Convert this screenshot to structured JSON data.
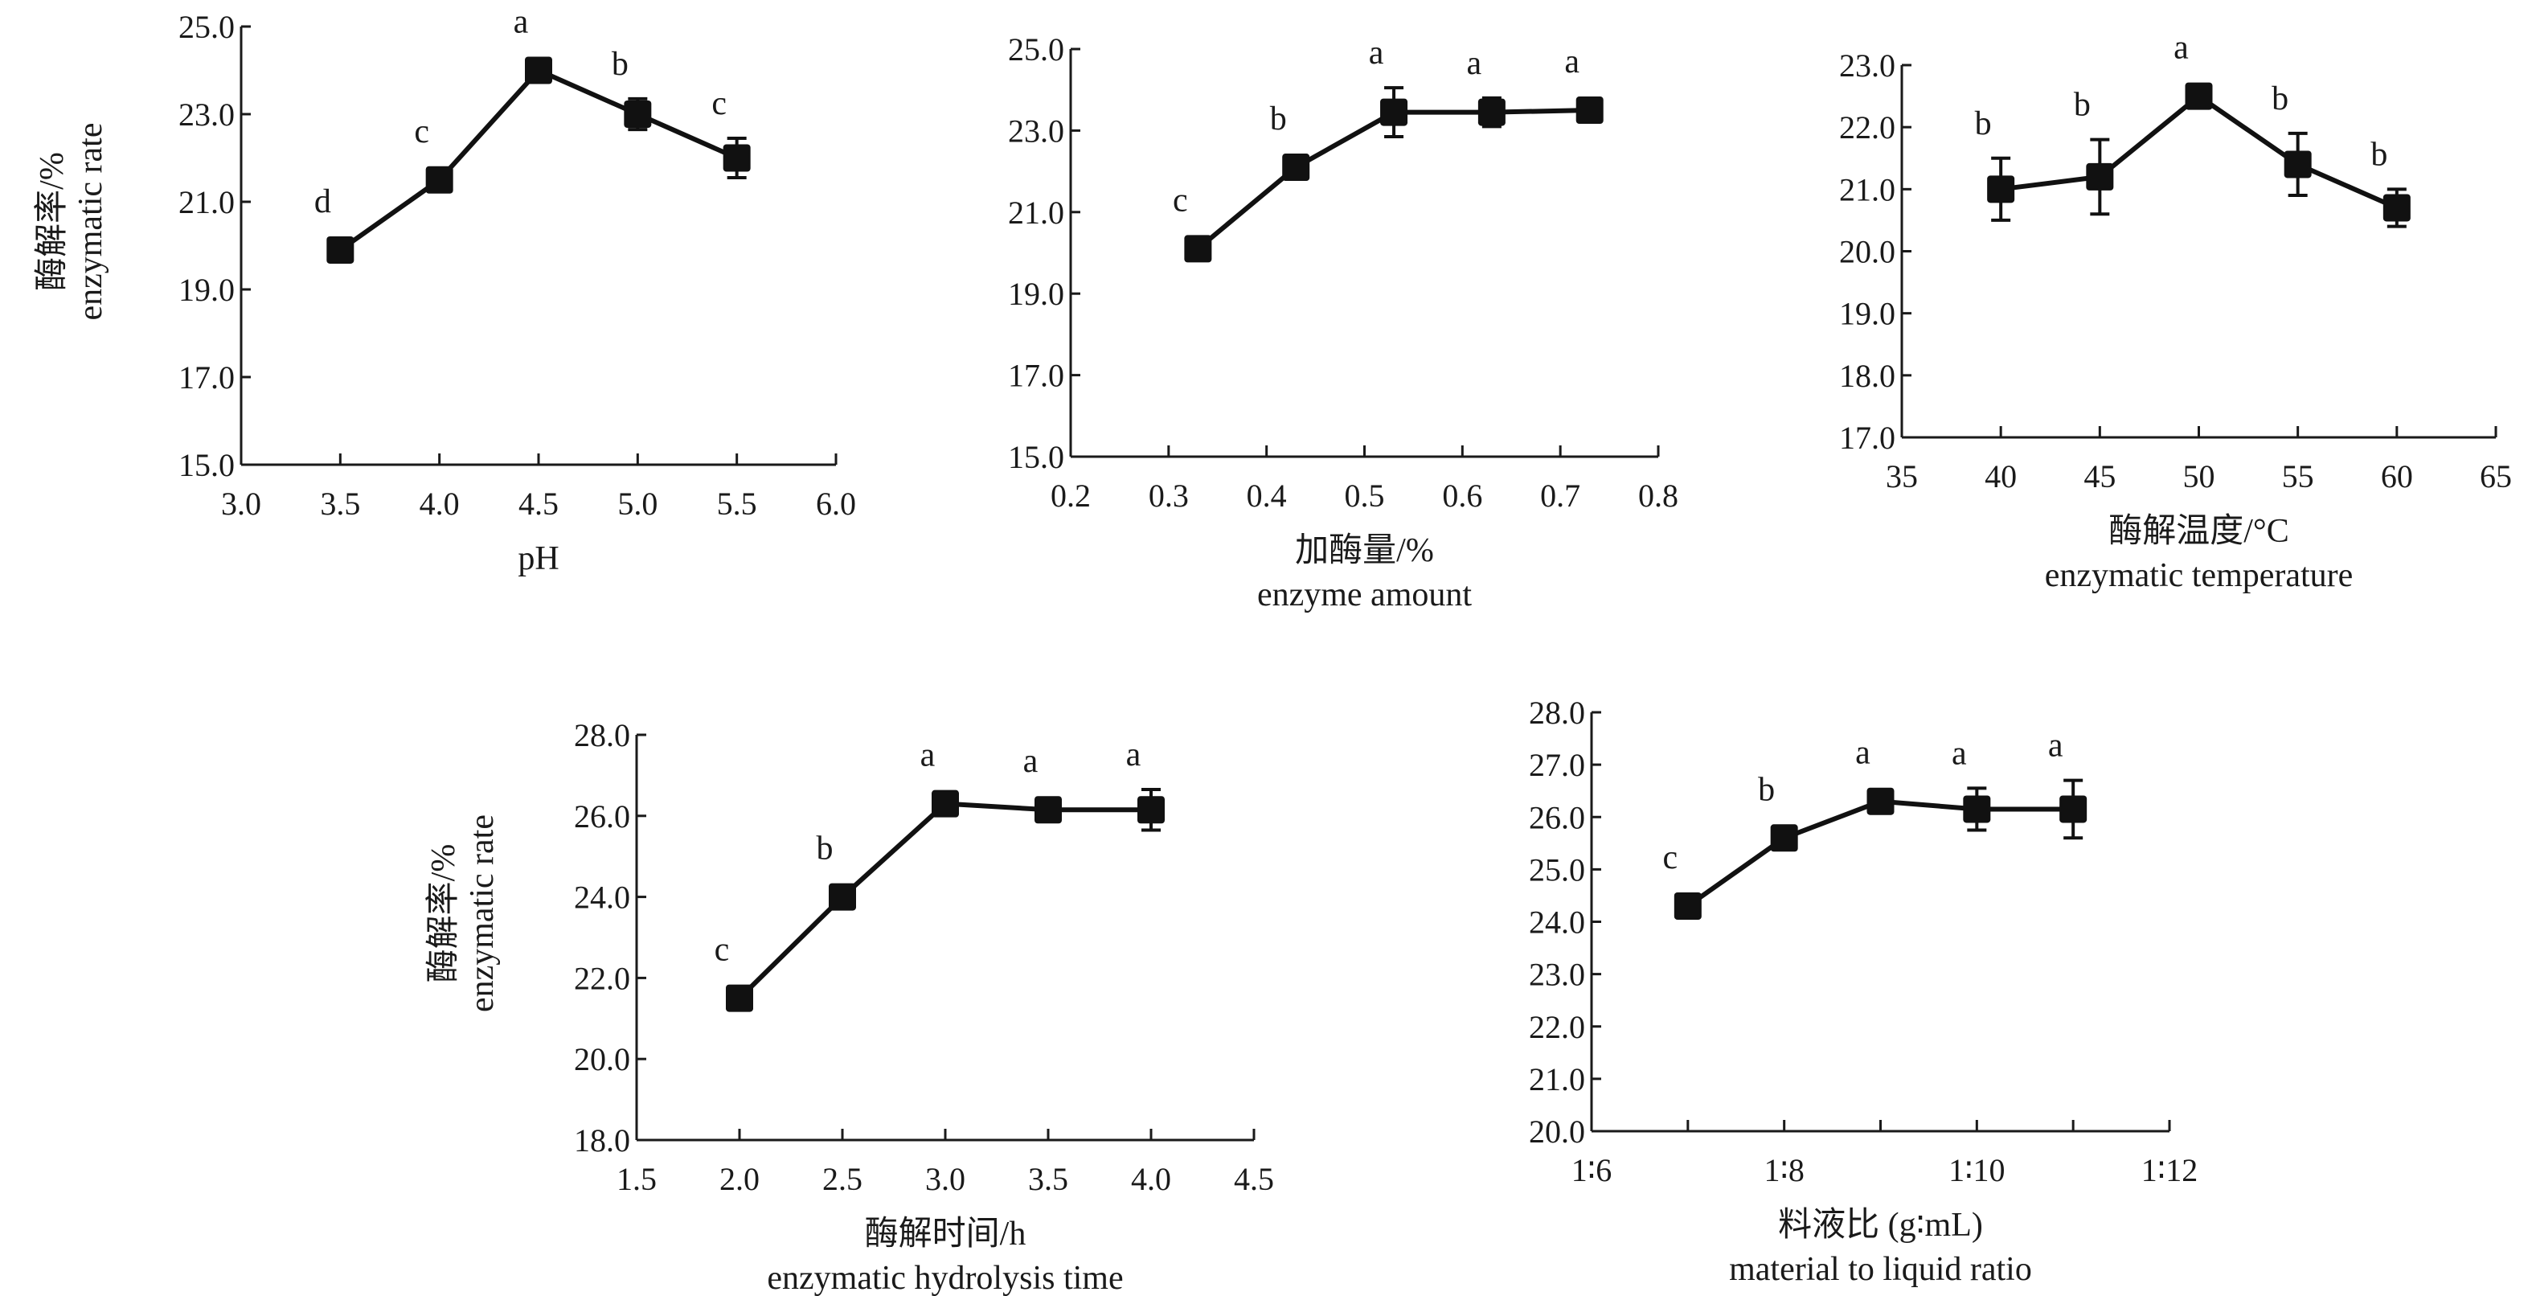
{
  "chart_data": [
    {
      "type": "line",
      "id": "ph",
      "title": "",
      "xlabel": "pH",
      "xlabel_en": "",
      "ylabel": "酶解率/%",
      "ylabel_en": "enzymatic rate",
      "xlim": [
        3.0,
        6.0
      ],
      "ylim": [
        15.0,
        25.0
      ],
      "xticks": [
        3.0,
        3.5,
        4.0,
        4.5,
        5.0,
        5.5,
        6.0
      ],
      "xtick_labels": [
        "3.0",
        "3.5",
        "4.0",
        "4.5",
        "5.0",
        "5.5",
        "6.0"
      ],
      "yticks": [
        15.0,
        17.0,
        19.0,
        21.0,
        23.0,
        25.0
      ],
      "ytick_labels": [
        "15.0",
        "17.0",
        "19.0",
        "21.0",
        "23.0",
        "25.0"
      ],
      "x": [
        3.5,
        4.0,
        4.5,
        5.0,
        5.5
      ],
      "values": [
        19.9,
        21.5,
        24.0,
        23.0,
        22.0
      ],
      "errors": [
        0.15,
        0.15,
        0.15,
        0.35,
        0.45
      ],
      "significance": [
        "d",
        "c",
        "a",
        "b",
        "c"
      ],
      "grid": false
    },
    {
      "type": "line",
      "id": "enzyme-amount",
      "title": "",
      "xlabel": "加酶量/%",
      "xlabel_en": "enzyme amount",
      "ylabel": "",
      "ylabel_en": "",
      "xlim": [
        0.2,
        0.8
      ],
      "ylim": [
        15.0,
        25.0
      ],
      "xticks": [
        0.2,
        0.3,
        0.4,
        0.5,
        0.6,
        0.7,
        0.8
      ],
      "xtick_labels": [
        "0.2",
        "0.3",
        "0.4",
        "0.5",
        "0.6",
        "0.7",
        "0.8"
      ],
      "yticks": [
        15.0,
        17.0,
        19.0,
        21.0,
        23.0,
        25.0
      ],
      "ytick_labels": [
        "15.0",
        "17.0",
        "19.0",
        "21.0",
        "23.0",
        "25.0"
      ],
      "x": [
        0.33,
        0.43,
        0.53,
        0.63,
        0.73
      ],
      "values": [
        20.1,
        22.1,
        23.45,
        23.45,
        23.5
      ],
      "errors": [
        0.15,
        0.15,
        0.6,
        0.35,
        0.1
      ],
      "significance": [
        "c",
        "b",
        "a",
        "a",
        "a"
      ],
      "grid": false
    },
    {
      "type": "line",
      "id": "temperature",
      "title": "",
      "xlabel": "酶解温度/°C",
      "xlabel_en": "enzymatic temperature",
      "ylabel": "",
      "ylabel_en": "",
      "xlim": [
        35,
        65
      ],
      "ylim": [
        17.0,
        23.0
      ],
      "xticks": [
        35,
        40,
        45,
        50,
        55,
        60,
        65
      ],
      "xtick_labels": [
        "35",
        "40",
        "45",
        "50",
        "55",
        "60",
        "65"
      ],
      "yticks": [
        17.0,
        18.0,
        19.0,
        20.0,
        21.0,
        22.0,
        23.0
      ],
      "ytick_labels": [
        "17.0",
        "18.0",
        "19.0",
        "20.0",
        "21.0",
        "22.0",
        "23.0"
      ],
      "x": [
        40,
        45,
        50,
        55,
        60
      ],
      "values": [
        21.0,
        21.2,
        22.5,
        21.4,
        20.7
      ],
      "errors": [
        0.5,
        0.6,
        0.1,
        0.5,
        0.3
      ],
      "significance": [
        "b",
        "b",
        "a",
        "b",
        "b"
      ],
      "grid": false
    },
    {
      "type": "line",
      "id": "time",
      "title": "",
      "xlabel": "酶解时间/h",
      "xlabel_en": "enzymatic hydrolysis time",
      "ylabel": "酶解率/%",
      "ylabel_en": "enzymatic rate",
      "xlim": [
        1.5,
        4.5
      ],
      "ylim": [
        18.0,
        28.0
      ],
      "xticks": [
        1.5,
        2.0,
        2.5,
        3.0,
        3.5,
        4.0,
        4.5
      ],
      "xtick_labels": [
        "1.5",
        "2.0",
        "2.5",
        "3.0",
        "3.5",
        "4.0",
        "4.5"
      ],
      "yticks": [
        18.0,
        20.0,
        22.0,
        24.0,
        26.0,
        28.0
      ],
      "ytick_labels": [
        "18.0",
        "20.0",
        "22.0",
        "24.0",
        "26.0",
        "28.0"
      ],
      "x": [
        2.0,
        2.5,
        3.0,
        3.5,
        4.0
      ],
      "values": [
        21.5,
        24.0,
        26.3,
        26.15,
        26.15
      ],
      "errors": [
        0.15,
        0.15,
        0.15,
        0.2,
        0.5
      ],
      "significance": [
        "c",
        "b",
        "a",
        "a",
        "a"
      ],
      "grid": false
    },
    {
      "type": "line",
      "id": "ratio",
      "title": "",
      "xlabel": "料液比 (g∶mL)",
      "xlabel_en": "material to liquid ratio",
      "ylabel": "",
      "ylabel_en": "",
      "xlim": [
        6,
        12
      ],
      "ylim": [
        20.0,
        28.0
      ],
      "xticks": [
        6,
        7,
        8,
        9,
        10,
        11,
        12
      ],
      "xtick_labels": [
        "1∶6",
        "",
        "1∶8",
        "",
        "1∶10",
        "",
        "1∶12"
      ],
      "yticks": [
        20.0,
        21.0,
        22.0,
        23.0,
        24.0,
        25.0,
        26.0,
        27.0,
        28.0
      ],
      "ytick_labels": [
        "20.0",
        "21.0",
        "22.0",
        "23.0",
        "24.0",
        "25.0",
        "26.0",
        "27.0",
        "28.0"
      ],
      "x": [
        7,
        8,
        9,
        10,
        11
      ],
      "values": [
        24.3,
        25.6,
        26.3,
        26.15,
        26.15
      ],
      "errors": [
        0.15,
        0.15,
        0.15,
        0.4,
        0.55
      ],
      "significance": [
        "c",
        "b",
        "a",
        "a",
        "a"
      ],
      "grid": false
    }
  ]
}
